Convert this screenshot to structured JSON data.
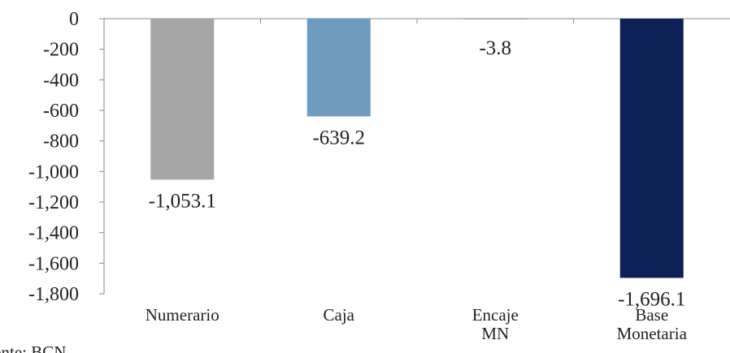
{
  "chart_data": {
    "type": "bar",
    "title": "",
    "xlabel": "",
    "ylabel": "",
    "categories": [
      [
        "Numerario"
      ],
      [
        "Caja"
      ],
      [
        "Encaje",
        "MN"
      ],
      [
        "Base",
        "Monetaria"
      ]
    ],
    "values": [
      -1053.1,
      -639.2,
      -3.8,
      -1696.1
    ],
    "value_labels": [
      "-1,053.1",
      "-639.2",
      "-3.8",
      "-1,696.1"
    ],
    "colors": [
      "#a6a6a6",
      "#6f9bbf",
      "#a5a5a5",
      "#0e2157"
    ],
    "ylim": [
      -1800,
      0
    ],
    "yticks": [
      0,
      -200,
      -400,
      -600,
      -800,
      -1000,
      -1200,
      -1400,
      -1600,
      -1800
    ],
    "ytick_labels": [
      "0",
      "-200",
      "-400",
      "-600",
      "-800",
      "-1,000",
      "-1,200",
      "-1,400",
      "-1,600",
      "-1,800"
    ],
    "grid": false,
    "legend": "none"
  },
  "source_note": "Fuente: BCN"
}
